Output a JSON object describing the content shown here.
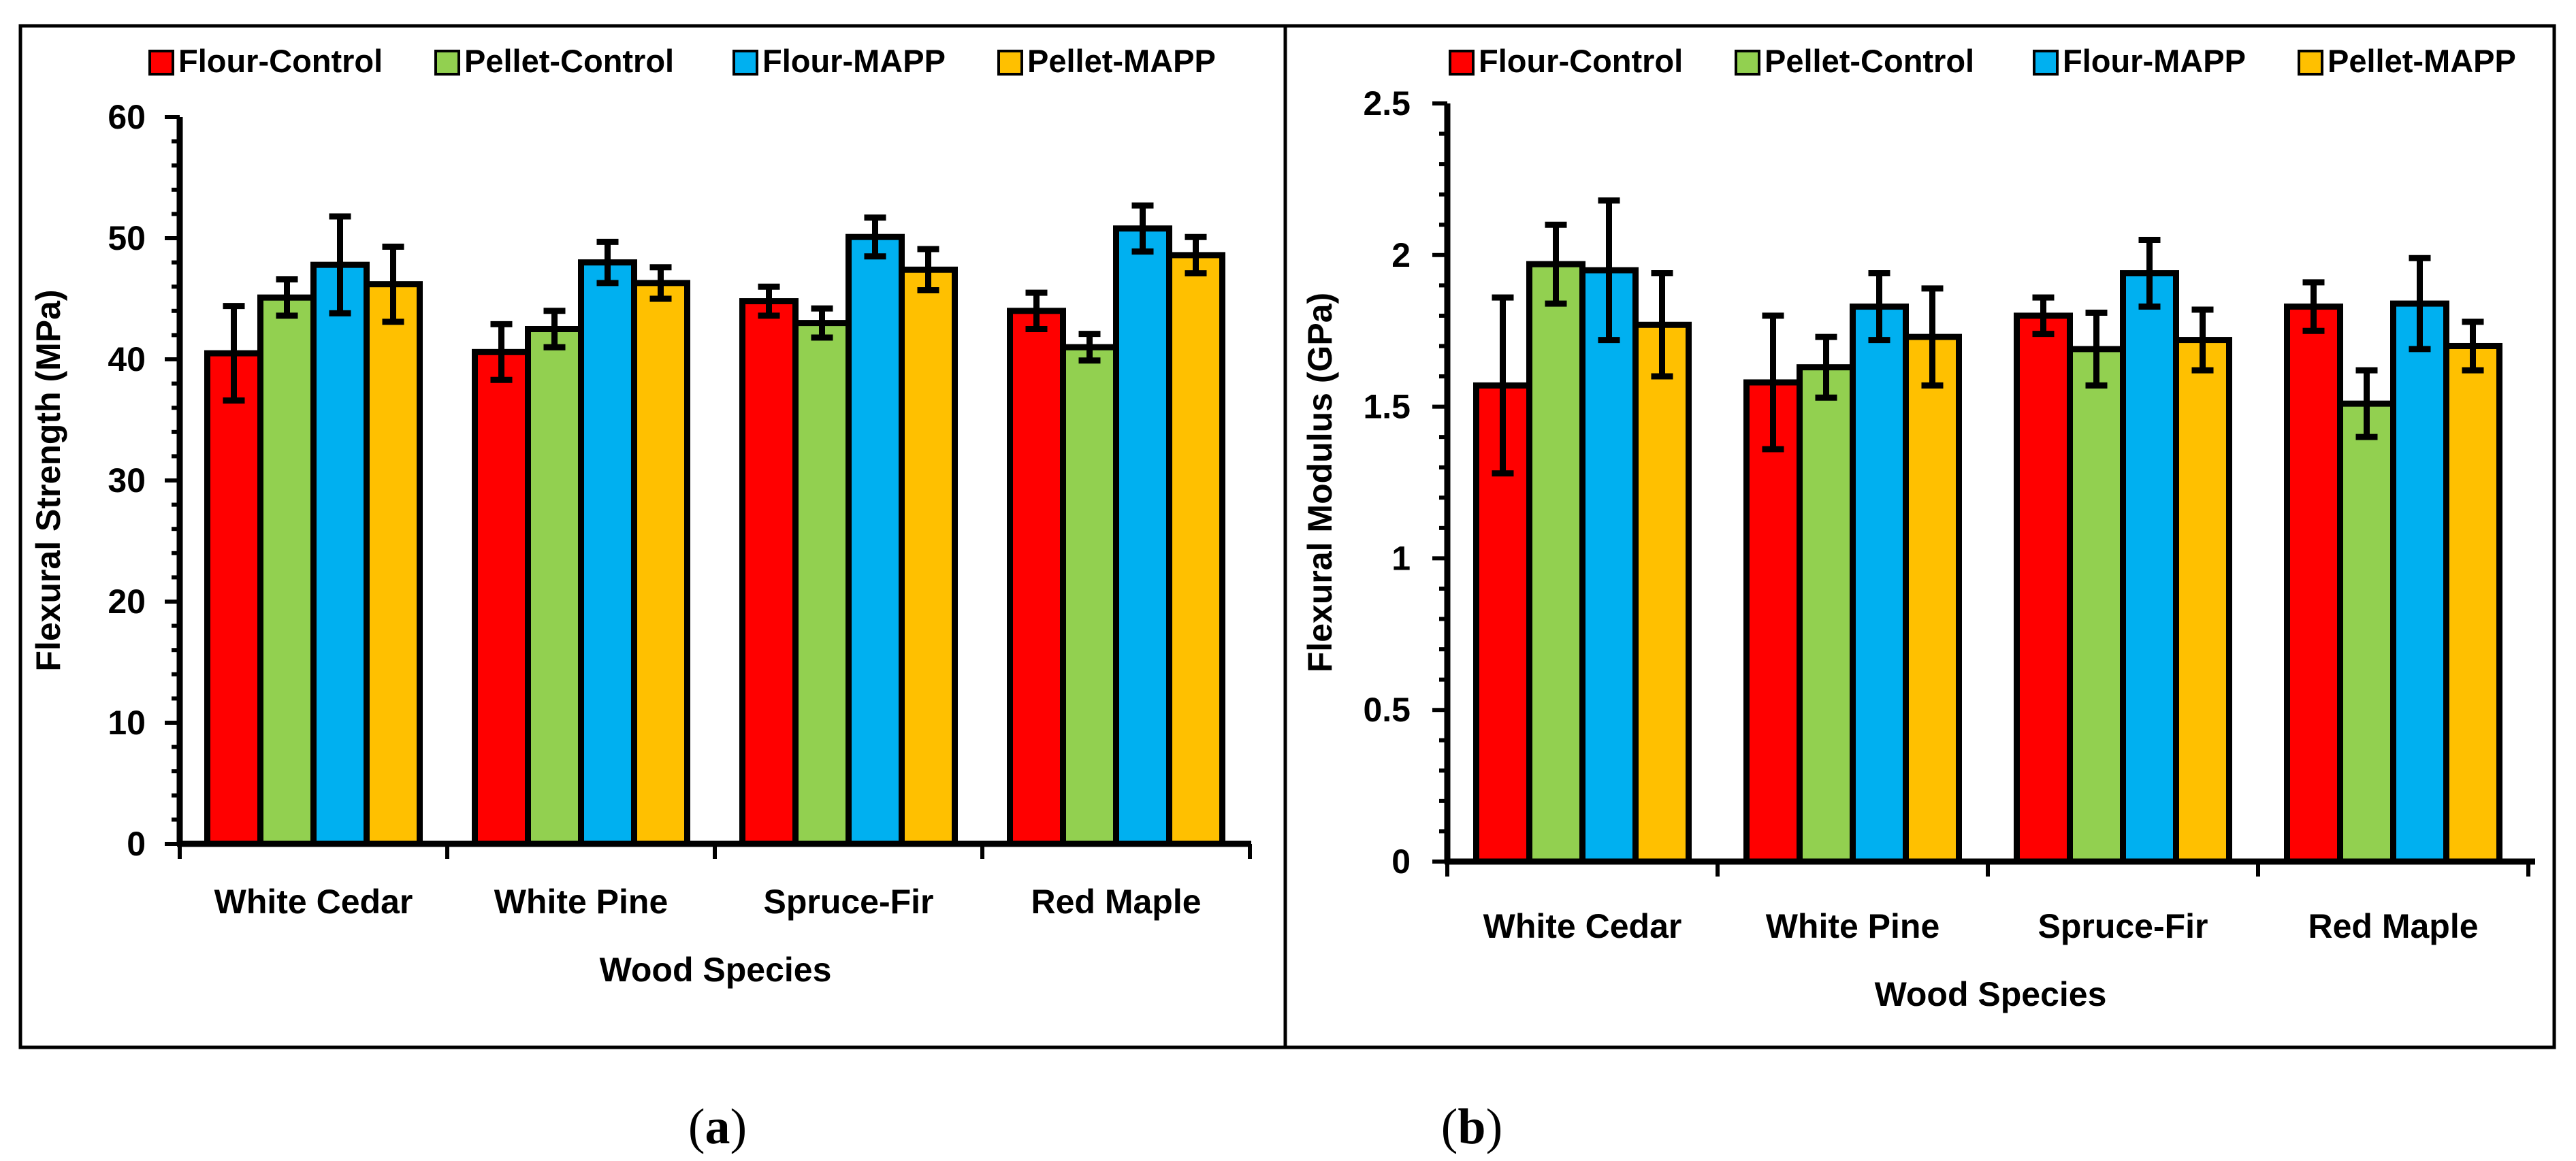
{
  "figure": {
    "captions": [
      {
        "open": "(",
        "letter": "a",
        "close": ")"
      },
      {
        "open": "(",
        "letter": "b",
        "close": ")"
      }
    ]
  },
  "chart_data": [
    {
      "type": "bar",
      "categories": [
        "White Cedar",
        "White Pine",
        "Spruce-Fir",
        "Red Maple"
      ],
      "series": [
        {
          "name": "Flour-Control",
          "color": "#FF0000",
          "values": [
            40.5,
            40.6,
            44.8,
            44.0
          ],
          "errors": [
            3.9,
            2.3,
            1.2,
            1.5
          ]
        },
        {
          "name": "Pellet-Control",
          "color": "#92D050",
          "values": [
            45.1,
            42.5,
            43.0,
            41.0
          ],
          "errors": [
            1.5,
            1.5,
            1.2,
            1.1
          ]
        },
        {
          "name": "Flour-MAPP",
          "color": "#00B0F0",
          "values": [
            47.8,
            48.0,
            50.1,
            50.8
          ],
          "errors": [
            4.0,
            1.7,
            1.6,
            1.9
          ]
        },
        {
          "name": "Pellet-MAPP",
          "color": "#FFC000",
          "values": [
            46.2,
            46.3,
            47.4,
            48.6
          ],
          "errors": [
            3.1,
            1.3,
            1.7,
            1.5
          ]
        }
      ],
      "xlabel": "Wood Species",
      "ylabel": "Flexural Strength (MPa)",
      "ylim": [
        0,
        60
      ],
      "yticks": [
        0,
        10,
        20,
        30,
        40,
        50,
        60
      ],
      "ytick_labels": [
        "0",
        "10",
        "20",
        "30",
        "40",
        "50",
        "60"
      ],
      "legend": "top",
      "grid": false
    },
    {
      "type": "bar",
      "categories": [
        "White Cedar",
        "White Pine",
        "Spruce-Fir",
        "Red Maple"
      ],
      "series": [
        {
          "name": "Flour-Control",
          "color": "#FF0000",
          "values": [
            1.57,
            1.58,
            1.8,
            1.83
          ],
          "errors": [
            0.29,
            0.22,
            0.06,
            0.08
          ]
        },
        {
          "name": "Pellet-Control",
          "color": "#92D050",
          "values": [
            1.97,
            1.63,
            1.69,
            1.51
          ],
          "errors": [
            0.13,
            0.1,
            0.12,
            0.11
          ]
        },
        {
          "name": "Flour-MAPP",
          "color": "#00B0F0",
          "values": [
            1.95,
            1.83,
            1.94,
            1.84
          ],
          "errors": [
            0.23,
            0.11,
            0.11,
            0.15
          ]
        },
        {
          "name": "Pellet-MAPP",
          "color": "#FFC000",
          "values": [
            1.77,
            1.73,
            1.72,
            1.7
          ],
          "errors": [
            0.17,
            0.16,
            0.1,
            0.08
          ]
        }
      ],
      "xlabel": "Wood Species",
      "ylabel": "Flexural Modulus (GPa)",
      "ylim": [
        0,
        2.5
      ],
      "yticks": [
        0,
        0.5,
        1,
        1.5,
        2,
        2.5
      ],
      "ytick_labels": [
        "0",
        "0.5",
        "1",
        "1.5",
        "2",
        "2.5"
      ],
      "legend": "top",
      "grid": false
    }
  ]
}
